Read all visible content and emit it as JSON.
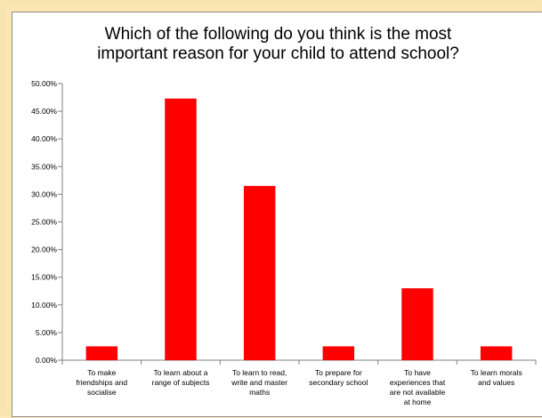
{
  "chart_data": {
    "type": "bar",
    "title_lines": [
      "Which of the following do you think is the most",
      "important reason for your child to attend school?"
    ],
    "categories": [
      [
        "To make",
        "friendships and",
        "socialise"
      ],
      [
        "To learn about a",
        "range of subjects"
      ],
      [
        "To learn to read,",
        "write and master",
        "maths"
      ],
      [
        "To prepare for",
        "secondary school"
      ],
      [
        "To have",
        "experiences that",
        "are not available",
        "at home"
      ],
      [
        "To learn morals",
        "and values"
      ]
    ],
    "values": [
      2.5,
      47.3,
      31.5,
      2.5,
      13.0,
      2.5
    ],
    "y_ticks": [
      "0.00%",
      "5.00%",
      "10.00%",
      "15.00%",
      "20.00%",
      "25.00%",
      "30.00%",
      "35.00%",
      "40.00%",
      "45.00%",
      "50.00%"
    ],
    "ylim": [
      0,
      50
    ],
    "bar_color": "#ff0000",
    "grid": false,
    "legend": "none"
  }
}
